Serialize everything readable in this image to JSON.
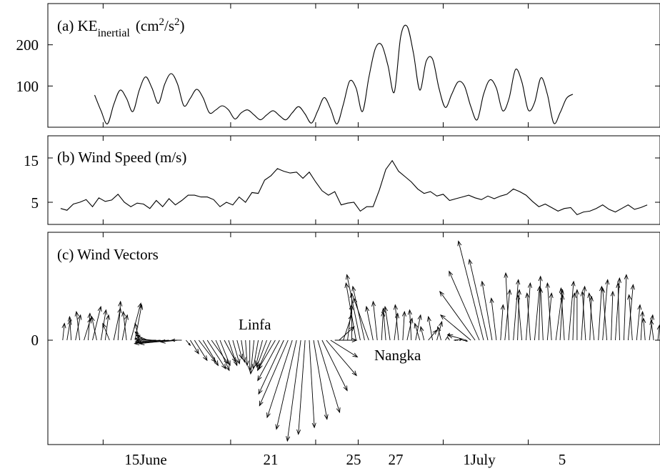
{
  "chart_data": [
    {
      "type": "line",
      "panel": "a",
      "title": "(a) KE",
      "title_sub": "inertial",
      "title_unit_pre": "(cm",
      "title_unit_sup1": "2",
      "title_unit_mid": "/s",
      "title_unit_sup2": "2",
      "title_unit_post": ")",
      "ylim": [
        0,
        300
      ],
      "yticks": [
        "100",
        "200"
      ],
      "ytick_values": [
        100,
        200
      ],
      "series": [
        {
          "x": [
            14.6,
            14.9,
            15.2,
            15.5,
            15.8,
            16.1,
            16.4,
            16.7,
            17.0,
            17.3,
            17.6,
            17.9,
            18.2,
            18.5,
            18.8,
            19.1,
            19.4,
            19.7,
            20.0,
            20.3,
            20.6,
            20.9,
            21.2,
            21.5,
            21.8,
            22.1,
            22.4,
            22.7,
            23.0,
            23.3,
            23.6,
            23.9,
            24.2,
            24.5,
            24.8,
            25.1,
            25.4,
            25.7,
            26.0,
            26.3,
            26.6,
            26.9,
            27.2,
            27.5,
            27.8,
            28.1,
            28.4,
            28.7,
            29.0,
            29.3,
            29.6,
            29.9,
            30.2,
            30.5,
            30.8,
            31.1,
            31.4,
            31.7,
            32.0,
            32.3,
            32.6,
            32.9,
            33.2,
            33.5,
            33.8,
            34.1,
            34.4,
            34.7,
            35.0,
            35.3,
            35.6,
            35.9,
            36.2,
            36.5,
            36.8,
            37.1
          ],
          "values": [
            78,
            40,
            8,
            55,
            90,
            70,
            38,
            90,
            122,
            95,
            58,
            105,
            130,
            105,
            52,
            70,
            92,
            72,
            35,
            42,
            52,
            42,
            20,
            35,
            42,
            30,
            18,
            30,
            40,
            28,
            18,
            35,
            50,
            32,
            10,
            40,
            72,
            45,
            8,
            55,
            112,
            95,
            38,
            120,
            190,
            200,
            150,
            85,
            220,
            245,
            180,
            90,
            160,
            165,
            95,
            48,
            80,
            110,
            100,
            50,
            18,
            80,
            115,
            95,
            40,
            70,
            140,
            110,
            42,
            60,
            120,
            80,
            10,
            35,
            70,
            80
          ]
        }
      ]
    },
    {
      "type": "line",
      "panel": "b",
      "title": "(b) Wind Speed  (m/s)",
      "ylim": [
        0,
        20
      ],
      "yticks": [
        "5",
        "15"
      ],
      "ytick_values": [
        5,
        15
      ],
      "series": [
        {
          "x": [
            13.0,
            13.3,
            13.6,
            13.9,
            14.2,
            14.5,
            14.8,
            15.1,
            15.4,
            15.7,
            16.0,
            16.3,
            16.6,
            16.9,
            17.2,
            17.5,
            17.8,
            18.1,
            18.4,
            18.7,
            19.0,
            19.3,
            19.6,
            19.9,
            20.2,
            20.5,
            20.8,
            21.1,
            21.4,
            21.7,
            22.0,
            22.3,
            22.6,
            22.9,
            23.2,
            23.5,
            23.8,
            24.1,
            24.4,
            24.7,
            25.0,
            25.3,
            25.6,
            25.9,
            26.2,
            26.5,
            26.8,
            27.1,
            27.4,
            27.7,
            28.0,
            28.3,
            28.6,
            28.9,
            29.2,
            29.5,
            29.8,
            30.1,
            30.4,
            30.7,
            31.0,
            31.3,
            31.6,
            31.9,
            32.2,
            32.5,
            32.8,
            33.1,
            33.4,
            33.7,
            34.0,
            34.3,
            34.6,
            34.9,
            35.2,
            35.5,
            35.8,
            36.1,
            36.4,
            36.7,
            37.0,
            37.3,
            37.6,
            37.9,
            38.2,
            38.5,
            38.8,
            39.1,
            39.4,
            39.7,
            40.0,
            40.3,
            40.6
          ],
          "values": [
            3.6,
            3.2,
            4.6,
            5.0,
            5.6,
            4.0,
            6.0,
            5.2,
            5.5,
            6.8,
            5.0,
            4.0,
            4.8,
            4.6,
            3.6,
            5.4,
            4.0,
            5.8,
            4.4,
            5.4,
            6.6,
            6.6,
            6.2,
            6.2,
            5.6,
            4.0,
            5.0,
            4.4,
            6.2,
            5.0,
            7.2,
            7.0,
            10.0,
            11.0,
            12.6,
            12.0,
            11.6,
            11.8,
            10.4,
            11.8,
            9.6,
            7.6,
            6.6,
            7.4,
            4.4,
            4.8,
            5.0,
            3.0,
            4.0,
            4.0,
            7.8,
            12.4,
            14.4,
            12.0,
            10.8,
            9.6,
            8.0,
            7.0,
            7.4,
            6.4,
            6.8,
            5.4,
            5.8,
            6.2,
            6.6,
            6.0,
            5.6,
            6.4,
            5.8,
            6.4,
            6.8,
            8.0,
            7.4,
            6.6,
            5.2,
            4.0,
            4.6,
            3.8,
            3.0,
            3.6,
            3.8,
            2.2,
            2.8,
            3.0,
            3.6,
            4.4,
            3.4,
            2.8,
            3.6,
            4.4,
            3.4,
            3.8,
            4.4
          ]
        }
      ]
    },
    {
      "type": "vector",
      "panel": "c",
      "title": "(c) Wind Vectors",
      "yticks": [
        "0"
      ],
      "annotations": [
        {
          "text": "Linfa",
          "day": 20.8,
          "v": 0.9
        },
        {
          "text": "Nangka",
          "day": 26.8,
          "v": -2.2
        }
      ],
      "ylim": [
        -13,
        12
      ],
      "vectors": {
        "start": 13.1,
        "step": 0.2,
        "u": [
          0.2,
          0.4,
          -0.2,
          0.6,
          -0.4,
          0.8,
          0.2,
          1.0,
          -0.6,
          0.6,
          0.4,
          -0.8,
          0.8,
          0.3,
          0.6,
          -0.4,
          1.2,
          0.8,
          -0.5,
          -1.0,
          -1.4,
          -2.0,
          -2.4,
          -3.0,
          -3.6,
          -3.8,
          -4.0,
          -2.0,
          -1.2,
          0.5,
          1.0,
          1.5,
          2.0,
          1.8,
          2.2,
          2.0,
          1.6,
          1.2,
          1.4,
          1.0,
          0.8,
          0.6,
          0.4,
          0.2,
          0.0,
          -0.4,
          -0.6,
          -0.8,
          -1.2,
          -1.6,
          -2.0,
          -2.6,
          -3.0,
          -3.4,
          -3.0,
          -2.4,
          -1.6,
          -0.8,
          0.6,
          1.6,
          2.6,
          3.0,
          3.6,
          3.2,
          2.6,
          1.8,
          1.0,
          0.5,
          0.0,
          -1.2,
          -1.6,
          -1.4,
          -1.8,
          -0.8,
          -0.5,
          0.2,
          -0.3,
          -0.6,
          0.4,
          -0.4,
          0.2,
          0.6,
          -0.2,
          0.6,
          -0.6,
          -0.4,
          1.0,
          -0.5,
          0.6,
          -0.4,
          0.5,
          -0.2,
          1.0,
          -0.4,
          0.6,
          -2.2,
          -3.6,
          -4.2,
          -3.6,
          -3.0,
          -2.2,
          -1.2,
          -0.6,
          0.3,
          0.6,
          -0.4,
          0.6,
          0.2,
          -0.5,
          0.5,
          -0.4,
          0.6,
          0.2,
          -0.3,
          0.5,
          -0.5,
          0.8,
          0.3,
          -0.4,
          0.6,
          0.2,
          0.0,
          0.4,
          -0.4,
          0.2,
          -0.6,
          0.4,
          0.6,
          -0.5,
          0.2,
          0.5,
          -0.2,
          0.3,
          0.6,
          -0.4,
          0.4,
          0.2,
          -0.2,
          0.4,
          -0.3,
          0.2,
          0.2,
          -0.2,
          0.2,
          0.0,
          -0.2,
          0.1,
          0.0,
          0.2,
          -0.1,
          0.0,
          0.1,
          -0.1,
          0.0,
          0.2,
          -0.2,
          0.0,
          0.0,
          0.1,
          0.1
        ],
        "v": [
          2.0,
          2.4,
          2.8,
          3.0,
          3.4,
          2.6,
          3.2,
          4.0,
          2.8,
          3.6,
          3.0,
          2.0,
          3.8,
          4.6,
          3.0,
          3.4,
          4.4,
          4.2,
          2.0,
          1.0,
          0.6,
          0.2,
          0.0,
          -0.2,
          -0.4,
          -0.3,
          -0.4,
          -0.2,
          0.0,
          -0.6,
          -1.6,
          -2.4,
          -2.6,
          -3.0,
          -3.4,
          -2.8,
          -3.6,
          -3.0,
          -2.6,
          -3.0,
          -2.8,
          -2.2,
          -2.6,
          -3.0,
          -3.6,
          -4.0,
          -3.4,
          -3.0,
          -3.2,
          -3.6,
          -3.4,
          -4.8,
          -6.4,
          -7.8,
          -9.2,
          -10.6,
          -12.0,
          -11.2,
          -10.4,
          -9.4,
          -8.6,
          -6.0,
          -4.2,
          -2.0,
          0.0,
          1.6,
          3.0,
          4.2,
          5.6,
          6.8,
          7.8,
          6.4,
          5.0,
          4.0,
          4.6,
          3.4,
          3.8,
          4.0,
          3.2,
          4.2,
          3.4,
          2.6,
          3.6,
          3.0,
          2.0,
          1.6,
          1.2,
          2.8,
          2.2,
          1.6,
          0.8,
          0.3,
          0.1,
          0.0,
          -0.1,
          0.6,
          3.0,
          5.8,
          8.2,
          11.8,
          9.6,
          7.0,
          5.0,
          4.2,
          6.0,
          8.0,
          7.2,
          6.0,
          5.4,
          6.8,
          5.6,
          6.4,
          7.6,
          6.2,
          5.6,
          6.8,
          6.0,
          5.4,
          6.2,
          7.0,
          5.6,
          6.0,
          6.4,
          5.8,
          5.2,
          5.6,
          6.4,
          7.2,
          6.2,
          5.8,
          7.4,
          6.8,
          7.8,
          6.6,
          5.4,
          4.2,
          3.4,
          2.6,
          3.0,
          2.4,
          1.8,
          2.6,
          1.4,
          2.0,
          0.8,
          1.4,
          0.6,
          1.0,
          0.4,
          0.2,
          0.8,
          0.3,
          0.6,
          0.2,
          0.4,
          1.0,
          0.6,
          1.4,
          2.2,
          1.6
        ]
      }
    }
  ],
  "xaxis": {
    "tick_labels": [
      "15June",
      "21",
      "25",
      "27",
      "1July",
      "5"
    ],
    "tick_days": [
      15,
      21,
      25,
      27,
      31,
      35
    ],
    "xlim": [
      12.4,
      41.2
    ]
  }
}
